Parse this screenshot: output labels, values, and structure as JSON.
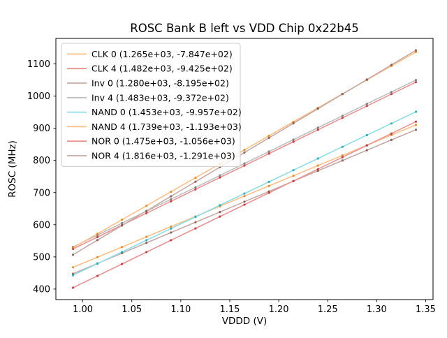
{
  "chart_data": {
    "type": "line",
    "title": "ROSC Bank B left vs VDD Chip 0x22b45",
    "xlabel": "VDDD (V)",
    "ylabel": "ROSC (MHz)",
    "grid": false,
    "legend_position": "upper left",
    "xlim": [
      0.9725,
      1.3575
    ],
    "ylim": [
      367.3,
      1179.4
    ],
    "xticks": [
      1.0,
      1.05,
      1.1,
      1.15,
      1.2,
      1.25,
      1.3,
      1.35
    ],
    "yticks": [
      400,
      500,
      600,
      700,
      800,
      900,
      1000,
      1100
    ],
    "x": [
      0.99,
      1.015,
      1.04,
      1.065,
      1.09,
      1.115,
      1.14,
      1.165,
      1.19,
      1.215,
      1.24,
      1.265,
      1.29,
      1.315,
      1.34
    ],
    "series": [
      {
        "id": "clk-0",
        "label": "CLK 0 (1.265e+03, -7.847e+02)",
        "fit": {
          "slope": 1265.0,
          "intercept": -784.7
        },
        "line_color": "#ffbf86",
        "marker_color": "#e8820c",
        "values": [
          467.7,
          499.3,
          530.9,
          562.5,
          594.2,
          625.8,
          657.4,
          689.0,
          720.7,
          752.3,
          783.9,
          815.5,
          847.2,
          878.8,
          910.4
        ]
      },
      {
        "id": "clk-4",
        "label": "CLK 4 (1.482e+03, -9.425e+02)",
        "fit": {
          "slope": 1482.0,
          "intercept": -942.5
        },
        "line_color": "#ea9393",
        "marker_color": "#c62a2a",
        "values": [
          524.7,
          561.7,
          598.8,
          635.8,
          672.9,
          709.9,
          747.0,
          784.0,
          821.1,
          858.1,
          895.2,
          932.2,
          969.3,
          1006.3,
          1043.4
        ]
      },
      {
        "id": "inv-0",
        "label": "Inv 0 (1.280e+03, -8.195e+02)",
        "fit": {
          "slope": 1280.0,
          "intercept": -819.5
        },
        "line_color": "#c5aaa5",
        "marker_color": "#84524a",
        "values": [
          447.7,
          479.7,
          511.7,
          543.7,
          575.7,
          607.7,
          639.7,
          671.7,
          703.7,
          735.7,
          767.7,
          799.7,
          831.7,
          863.7,
          895.7
        ]
      },
      {
        "id": "inv-4",
        "label": "Inv 4 (1.483e+03, -9.372e+02)",
        "fit": {
          "slope": 1483.0,
          "intercept": -937.2
        },
        "line_color": "#bfbfbf",
        "marker_color": "#757575",
        "values": [
          531.0,
          568.0,
          605.1,
          642.2,
          679.3,
          716.3,
          753.4,
          790.5,
          827.6,
          864.6,
          901.7,
          938.8,
          975.9,
          1012.9,
          1050.0
        ]
      },
      {
        "id": "nand-0",
        "label": "NAND 0 (1.453e+03, -9.957e+02)",
        "fit": {
          "slope": 1453.0,
          "intercept": -995.7
        },
        "line_color": "#8bdee7",
        "marker_color": "#14a8b7",
        "values": [
          442.8,
          479.1,
          515.4,
          551.8,
          588.1,
          624.4,
          660.7,
          697.1,
          733.4,
          769.7,
          806.0,
          842.4,
          878.7,
          915.0,
          951.3
        ]
      },
      {
        "id": "nand-4",
        "label": "NAND 4 (1.739e+03, -1.193e+03)",
        "fit": {
          "slope": 1739.0,
          "intercept": -1193.0
        },
        "line_color": "#ffbf86",
        "marker_color": "#e8820c",
        "values": [
          528.6,
          572.1,
          615.6,
          659.0,
          702.5,
          746.0,
          789.5,
          832.9,
          876.4,
          919.9,
          963.4,
          1006.8,
          1050.3,
          1093.8,
          1137.3
        ]
      },
      {
        "id": "nor-0",
        "label": "NOR 0 (1.475e+03, -1.056e+03)",
        "fit": {
          "slope": 1475.0,
          "intercept": -1056.0
        },
        "line_color": "#ea9393",
        "marker_color": "#c62a2a",
        "values": [
          404.3,
          441.1,
          478.0,
          514.9,
          551.8,
          588.6,
          625.5,
          662.4,
          699.3,
          736.1,
          773.0,
          809.9,
          846.8,
          883.6,
          920.5
        ]
      },
      {
        "id": "nor-4",
        "label": "NOR 4 (1.816e+03, -1.291e+03)",
        "fit": {
          "slope": 1816.0,
          "intercept": -1291.0
        },
        "line_color": "#c5aaa5",
        "marker_color": "#84524a",
        "values": [
          506.8,
          552.2,
          597.6,
          643.0,
          688.4,
          733.8,
          779.2,
          824.6,
          870.0,
          915.4,
          960.8,
          1006.2,
          1051.6,
          1097.0,
          1142.4
        ]
      }
    ],
    "legend_frame_color": "#cccccc",
    "axis_color": "#000000"
  }
}
